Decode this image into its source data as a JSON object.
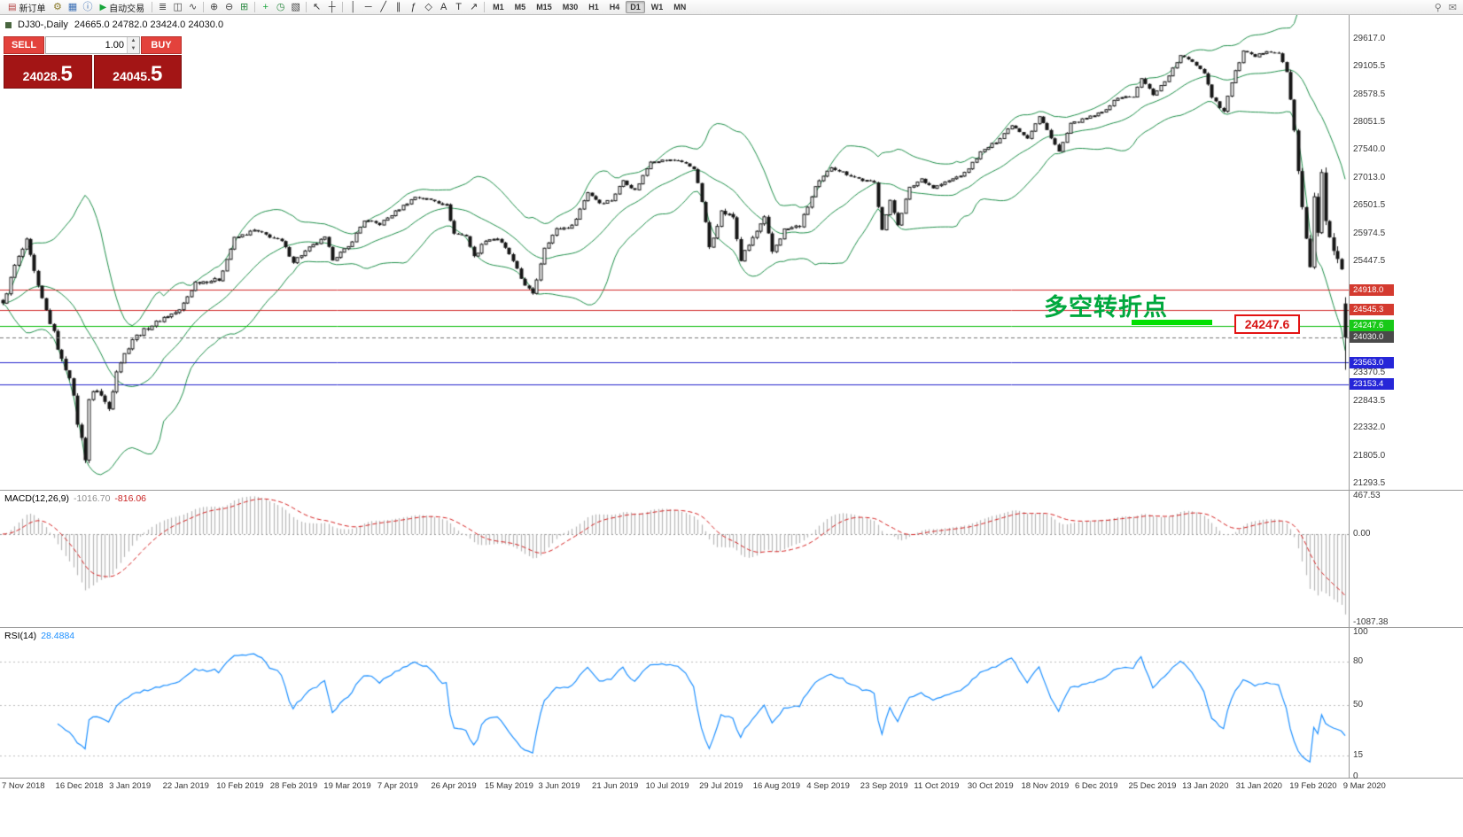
{
  "colors": {
    "bollinger": "#1f8f4a",
    "candle": "#161616",
    "candle_up_fill": "#ffffff",
    "macd_hist": "#b6b6b6",
    "macd_signal": "#d42020",
    "rsi_line": "#1e90ff",
    "level_dotted": "#bdbdbd",
    "zero_dotted": "#9a9a9a",
    "sell_red": "#e3423c",
    "price_box_red": "#a31515",
    "hline_red": "#d02a2a",
    "hline_green": "#00bb00",
    "hline_blue": "#2323cc",
    "current_price_gray": "#777777"
  },
  "toolbar": {
    "items": [
      {
        "type": "button",
        "name": "new-order-button",
        "icon_name": "new-order-icon",
        "icon": "▤",
        "icon_color": "#b23b3b",
        "label": "新订单"
      },
      {
        "type": "icon",
        "name": "expert-advisors-icon",
        "glyph": "⚙",
        "color": "#8a7a2a"
      },
      {
        "type": "icon",
        "name": "charts-profile-icon",
        "glyph": "▦",
        "color": "#3b6fb5"
      },
      {
        "type": "icon",
        "name": "info-icon",
        "glyph": "ⓘ",
        "color": "#3b6fb5"
      },
      {
        "type": "button",
        "name": "autotrading-button",
        "icon_name": "autotrading-play-icon",
        "icon": "▶",
        "icon_color": "#17a53a",
        "label": "自动交易"
      },
      {
        "type": "sep"
      },
      {
        "type": "icon",
        "name": "bar-chart-mode-icon",
        "glyph": "≣",
        "color": "#444444"
      },
      {
        "type": "icon",
        "name": "candlestick-mode-icon",
        "glyph": "◫",
        "color": "#444444"
      },
      {
        "type": "icon",
        "name": "line-chart-mode-icon",
        "glyph": "∿",
        "color": "#444444"
      },
      {
        "type": "sep"
      },
      {
        "type": "icon",
        "name": "zoom-in-icon",
        "glyph": "⊕",
        "color": "#444444"
      },
      {
        "type": "icon",
        "name": "zoom-out-icon",
        "glyph": "⊖",
        "color": "#444444"
      },
      {
        "type": "icon",
        "name": "tile-windows-icon",
        "glyph": "⊞",
        "color": "#2e8b44"
      },
      {
        "type": "sep"
      },
      {
        "type": "icon",
        "name": "new-chart-icon",
        "glyph": "+",
        "color": "#17a53a"
      },
      {
        "type": "icon",
        "name": "period-icon",
        "glyph": "◷",
        "color": "#2e8b44"
      },
      {
        "type": "icon",
        "name": "templates-icon",
        "glyph": "▧",
        "color": "#444444"
      },
      {
        "type": "sep"
      },
      {
        "type": "icon",
        "name": "cursor-icon",
        "glyph": "↖",
        "color": "#333333"
      },
      {
        "type": "icon",
        "name": "crosshair-icon",
        "glyph": "┼",
        "color": "#333333"
      },
      {
        "type": "sep"
      },
      {
        "type": "icon",
        "name": "vertical-line-icon",
        "glyph": "│",
        "color": "#333333"
      },
      {
        "type": "icon",
        "name": "horizontal-line-icon",
        "glyph": "─",
        "color": "#333333"
      },
      {
        "type": "icon",
        "name": "trendline-icon",
        "glyph": "╱",
        "color": "#333333"
      },
      {
        "type": "icon",
        "name": "channel-icon",
        "glyph": "∥",
        "color": "#333333"
      },
      {
        "type": "icon",
        "name": "fibonacci-icon",
        "glyph": "ƒ",
        "color": "#333333"
      },
      {
        "type": "icon",
        "name": "shapes-icon",
        "glyph": "◇",
        "color": "#333333"
      },
      {
        "type": "icon",
        "name": "text-icon",
        "glyph": "A",
        "color": "#333333"
      },
      {
        "type": "icon",
        "name": "label-icon",
        "glyph": "T",
        "color": "#333333"
      },
      {
        "type": "icon",
        "name": "arrows-icon",
        "glyph": "↗",
        "color": "#333333"
      },
      {
        "type": "sep"
      }
    ],
    "timeframes": [
      "M1",
      "M5",
      "M15",
      "M30",
      "H1",
      "H4",
      "D1",
      "W1",
      "MN"
    ],
    "active_timeframe": "D1",
    "right_icons": [
      {
        "name": "search-icon",
        "glyph": "⚲"
      },
      {
        "name": "messages-icon",
        "glyph": "✉"
      }
    ]
  },
  "chart": {
    "symbol_label": "DJ30-,Daily",
    "ohlc_label": "24665.0 24782.0 23424.0 24030.0",
    "annotation": {
      "text": "多空转折点",
      "price_label": "24247.6"
    }
  },
  "trade_panel": {
    "sell_label": "SELL",
    "buy_label": "BUY",
    "volume": "1.00",
    "sell_price_main": "24028.",
    "sell_price_big": "5",
    "buy_price_main": "24045.",
    "buy_price_big": "5"
  },
  "macd": {
    "name": "MACD(12,26,9)",
    "value_main": "-1016.70",
    "value_signal": "-816.06",
    "axis": [
      "467.53",
      "0.00",
      "-1087.38"
    ],
    "axis_max": 467.53,
    "axis_min": -1087.38,
    "params": [
      12,
      26,
      9
    ]
  },
  "rsi": {
    "name": "RSI(14)",
    "value": "28.4884",
    "axis": [
      "100",
      "80",
      "50",
      "15",
      "0"
    ],
    "levels": [
      80,
      50,
      15
    ],
    "period": 14,
    "last": 28.4884
  },
  "chart_data": {
    "type": "candlestick",
    "symbol": "DJ30-",
    "timeframe": "Daily",
    "bar_count": 343,
    "ylim": [
      21177,
      30065
    ],
    "visible_price_range": [
      21293.5,
      29617.0
    ],
    "current_bar": {
      "open": 24665.0,
      "high": 24782.0,
      "low": 23424.0,
      "close": 24030.0
    },
    "bollinger": {
      "period": 20,
      "deviation": 2
    },
    "keyframes_format": "[bar_index, close, volatility] — approximated daily closes of the DJ30 index Nov 2018 → Mar 2020",
    "keyframes": [
      [
        0,
        24640,
        120
      ],
      [
        3,
        25370,
        110
      ],
      [
        6,
        25830,
        110
      ],
      [
        9,
        24950,
        130
      ],
      [
        13,
        24100,
        140
      ],
      [
        15,
        23590,
        150
      ],
      [
        17,
        23320,
        160
      ],
      [
        19,
        22440,
        180
      ],
      [
        21,
        21790,
        190
      ],
      [
        22,
        22880,
        170
      ],
      [
        24,
        23060,
        150
      ],
      [
        27,
        22690,
        140
      ],
      [
        29,
        23430,
        130
      ],
      [
        33,
        24000,
        110
      ],
      [
        37,
        24210,
        100
      ],
      [
        41,
        24400,
        95
      ],
      [
        45,
        24530,
        95
      ],
      [
        49,
        25060,
        90
      ],
      [
        55,
        25110,
        85
      ],
      [
        59,
        25880,
        80
      ],
      [
        64,
        26030,
        75
      ],
      [
        68,
        25920,
        75
      ],
      [
        71,
        25820,
        75
      ],
      [
        74,
        25450,
        80
      ],
      [
        78,
        25700,
        75
      ],
      [
        82,
        25890,
        70
      ],
      [
        84,
        25500,
        80
      ],
      [
        88,
        25720,
        70
      ],
      [
        92,
        26220,
        65
      ],
      [
        96,
        26150,
        65
      ],
      [
        100,
        26380,
        60
      ],
      [
        105,
        26660,
        60
      ],
      [
        110,
        26590,
        60
      ],
      [
        113,
        26500,
        70
      ],
      [
        115,
        25970,
        90
      ],
      [
        118,
        25940,
        85
      ],
      [
        120,
        25530,
        95
      ],
      [
        123,
        25860,
        80
      ],
      [
        126,
        25880,
        75
      ],
      [
        129,
        25590,
        85
      ],
      [
        132,
        25130,
        95
      ],
      [
        135,
        24820,
        100
      ],
      [
        138,
        25720,
        85
      ],
      [
        141,
        26050,
        75
      ],
      [
        145,
        26110,
        70
      ],
      [
        149,
        26750,
        65
      ],
      [
        152,
        26550,
        70
      ],
      [
        155,
        26600,
        65
      ],
      [
        158,
        26970,
        60
      ],
      [
        161,
        26780,
        65
      ],
      [
        165,
        27330,
        60
      ],
      [
        168,
        27340,
        55
      ],
      [
        172,
        27350,
        55
      ],
      [
        176,
        27200,
        65
      ],
      [
        178,
        26580,
        110
      ],
      [
        180,
        25720,
        150
      ],
      [
        183,
        26380,
        120
      ],
      [
        186,
        26280,
        110
      ],
      [
        188,
        25480,
        140
      ],
      [
        191,
        25890,
        120
      ],
      [
        194,
        26250,
        110
      ],
      [
        196,
        25630,
        130
      ],
      [
        199,
        26040,
        110
      ],
      [
        203,
        26120,
        95
      ],
      [
        207,
        26840,
        80
      ],
      [
        211,
        27220,
        70
      ],
      [
        215,
        27090,
        70
      ],
      [
        219,
        26970,
        70
      ],
      [
        222,
        26920,
        75
      ],
      [
        224,
        26080,
        105
      ],
      [
        226,
        26570,
        90
      ],
      [
        228,
        26160,
        95
      ],
      [
        231,
        26820,
        80
      ],
      [
        234,
        27000,
        70
      ],
      [
        237,
        26830,
        70
      ],
      [
        241,
        26960,
        65
      ],
      [
        245,
        27100,
        60
      ],
      [
        249,
        27490,
        55
      ],
      [
        253,
        27690,
        55
      ],
      [
        257,
        28010,
        50
      ],
      [
        261,
        27770,
        60
      ],
      [
        264,
        28160,
        50
      ],
      [
        267,
        27780,
        65
      ],
      [
        269,
        27500,
        70
      ],
      [
        272,
        28020,
        55
      ],
      [
        276,
        28130,
        50
      ],
      [
        280,
        28240,
        50
      ],
      [
        284,
        28520,
        45
      ],
      [
        288,
        28540,
        45
      ],
      [
        290,
        28870,
        50
      ],
      [
        293,
        28580,
        60
      ],
      [
        296,
        28820,
        50
      ],
      [
        300,
        29300,
        45
      ],
      [
        303,
        29200,
        50
      ],
      [
        306,
        28990,
        60
      ],
      [
        308,
        28540,
        75
      ],
      [
        311,
        28260,
        85
      ],
      [
        313,
        28810,
        70
      ],
      [
        316,
        29380,
        55
      ],
      [
        319,
        29280,
        55
      ],
      [
        322,
        29400,
        50
      ],
      [
        325,
        29350,
        55
      ],
      [
        327,
        28990,
        90
      ],
      [
        329,
        27960,
        180
      ],
      [
        330,
        27080,
        240
      ],
      [
        332,
        25770,
        280
      ],
      [
        333,
        25410,
        300
      ],
      [
        334,
        26700,
        280
      ],
      [
        335,
        25920,
        300
      ],
      [
        336,
        27090,
        280
      ],
      [
        337,
        26120,
        300
      ],
      [
        338,
        25860,
        260
      ],
      [
        341,
        25400,
        260
      ],
      [
        342,
        24030,
        200
      ]
    ],
    "hlines": [
      {
        "value": 24918.0,
        "color": "#d02a2a",
        "style": "solid"
      },
      {
        "value": 24545.3,
        "color": "#d02a2a",
        "style": "solid"
      },
      {
        "value": 24247.6,
        "color": "#00bb00",
        "style": "solid"
      },
      {
        "value": 24030.0,
        "color": "#777777",
        "style": "dash"
      },
      {
        "value": 23563.0,
        "color": "#2323cc",
        "style": "solid"
      },
      {
        "value": 23153.4,
        "color": "#2323cc",
        "style": "solid"
      }
    ],
    "price_ticks": [
      29617.0,
      29105.5,
      28578.5,
      28051.5,
      27540.0,
      27013.0,
      26501.5,
      25974.5,
      25447.5,
      23370.5,
      22843.5,
      22332.0,
      21805.0,
      21293.5
    ],
    "price_tags": [
      {
        "value": "24918.0",
        "bg": "#d43a2f",
        "fg": "#ffffff"
      },
      {
        "value": "24545.3",
        "bg": "#d43a2f",
        "fg": "#ffffff"
      },
      {
        "value": "24247.6",
        "bg": "#18c918",
        "fg": "#ffffff"
      },
      {
        "value": "24030.0",
        "bg": "#4a4a4a",
        "fg": "#ffffff"
      },
      {
        "value": "23563.0",
        "bg": "#2626d8",
        "fg": "#ffffff"
      },
      {
        "value": "23153.4",
        "bg": "#2626d8",
        "fg": "#ffffff"
      }
    ],
    "dates": [
      "7 Nov 2018",
      "16 Dec 2018",
      "3 Jan 2019",
      "22 Jan 2019",
      "10 Feb 2019",
      "28 Feb 2019",
      "19 Mar 2019",
      "7 Apr 2019",
      "26 Apr 2019",
      "15 May 2019",
      "3 Jun 2019",
      "21 Jun 2019",
      "10 Jul 2019",
      "29 Jul 2019",
      "16 Aug 2019",
      "4 Sep 2019",
      "23 Sep 2019",
      "11 Oct 2019",
      "30 Oct 2019",
      "18 Nov 2019",
      "6 Dec 2019",
      "25 Dec 2019",
      "13 Jan 2020",
      "31 Jan 2020",
      "19 Feb 2020",
      "9 Mar 2020"
    ]
  }
}
